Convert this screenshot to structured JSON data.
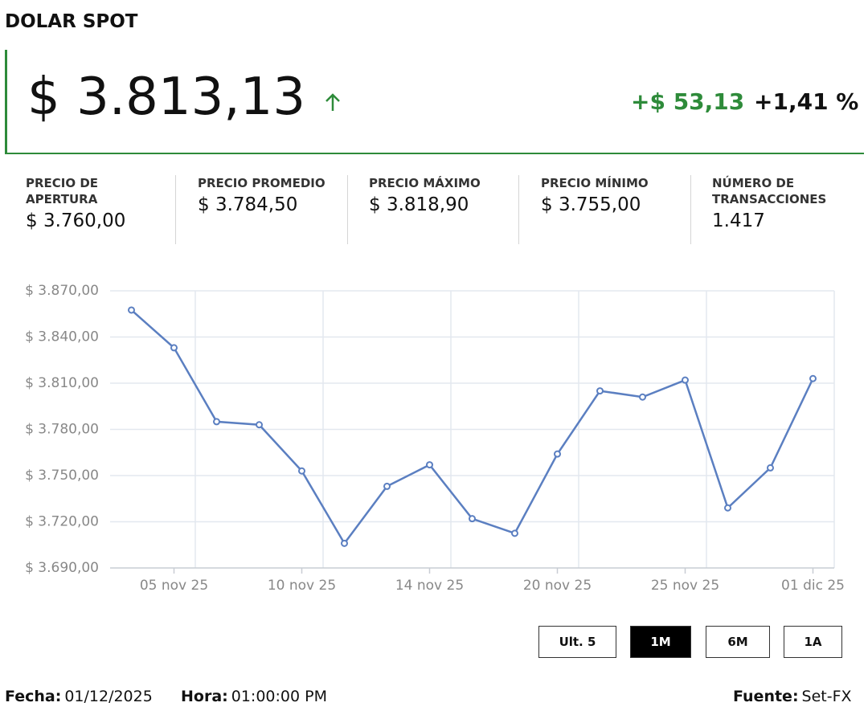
{
  "header": {
    "title": "DOLAR SPOT",
    "price": "$ 3.813,13",
    "change": "+$ 53,13",
    "change_pct": "+1,41 %"
  },
  "stats": [
    {
      "label": "PRECIO DE APERTURA",
      "value": "$ 3.760,00"
    },
    {
      "label": "PRECIO PROMEDIO",
      "value": "$ 3.784,50"
    },
    {
      "label": "PRECIO MÁXIMO",
      "value": "$ 3.818,90"
    },
    {
      "label": "PRECIO MÍNIMO",
      "value": "$ 3.755,00"
    },
    {
      "label": "NÚMERO DE TRANSACCIONES",
      "value": "1.417"
    }
  ],
  "chart_data": {
    "type": "line",
    "categories": [
      null,
      "05 nov 25",
      null,
      null,
      "10 nov 25",
      null,
      null,
      "14 nov 25",
      null,
      null,
      "20 nov 25",
      null,
      null,
      "25 nov 25",
      null,
      null,
      "01 dic 25"
    ],
    "values": [
      3857.5,
      3833,
      3785,
      3783,
      3753,
      3706,
      3743,
      3757,
      3722,
      3712.5,
      3764,
      3805,
      3801,
      3812,
      3729,
      3755,
      3813
    ],
    "color": "#5b7fc1",
    "ylim": [
      3690,
      3870
    ],
    "yticks": [
      {
        "value": 3690,
        "label": "$ 3.690,00"
      },
      {
        "value": 3720,
        "label": "$ 3.720,00"
      },
      {
        "value": 3750,
        "label": "$ 3.750,00"
      },
      {
        "value": 3780,
        "label": "$ 3.780,00"
      },
      {
        "value": 3810,
        "label": "$ 3.810,00"
      },
      {
        "value": 3840,
        "label": "$ 3.840,00"
      },
      {
        "value": 3870,
        "label": "$ 3.870,00"
      }
    ],
    "grid": true
  },
  "buttons": [
    "Ult. 5",
    "1M",
    "6M",
    "1A"
  ],
  "footer": {
    "date_label": "Fecha:",
    "date": "01/12/2025",
    "time_label": "Hora:",
    "time": "01:00:00 PM",
    "source_label": "Fuente:",
    "source": "Set-FX"
  }
}
